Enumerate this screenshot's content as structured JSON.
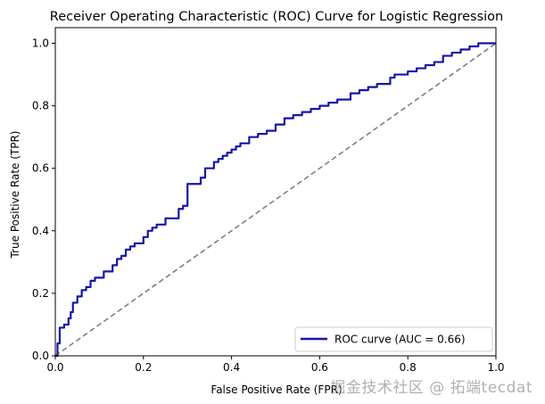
{
  "chart_data": {
    "type": "line",
    "title": "Receiver Operating Characteristic (ROC) Curve for Logistic Regression",
    "xlabel": "False Positive Rate (FPR)",
    "ylabel": "True Positive Rate (TPR)",
    "xlim": [
      0.0,
      1.0
    ],
    "ylim": [
      0.0,
      1.05
    ],
    "xticks": [
      "0.0",
      "0.2",
      "0.4",
      "0.6",
      "0.8",
      "1.0"
    ],
    "yticks": [
      "0.0",
      "0.2",
      "0.4",
      "0.6",
      "0.8",
      "1.0"
    ],
    "grid": false,
    "legend_position": "lower-right",
    "series": [
      {
        "name": "ROC curve (AUC = 0.66)",
        "color": "#1515a8",
        "style": "solid",
        "x": [
          0.0,
          0.005,
          0.005,
          0.01,
          0.01,
          0.02,
          0.02,
          0.03,
          0.03,
          0.035,
          0.035,
          0.04,
          0.04,
          0.05,
          0.05,
          0.06,
          0.06,
          0.07,
          0.07,
          0.08,
          0.08,
          0.09,
          0.09,
          0.11,
          0.11,
          0.13,
          0.13,
          0.14,
          0.14,
          0.15,
          0.15,
          0.16,
          0.16,
          0.17,
          0.17,
          0.18,
          0.18,
          0.2,
          0.2,
          0.21,
          0.21,
          0.22,
          0.22,
          0.23,
          0.23,
          0.25,
          0.25,
          0.28,
          0.28,
          0.29,
          0.29,
          0.3,
          0.3,
          0.33,
          0.33,
          0.34,
          0.34,
          0.36,
          0.36,
          0.37,
          0.37,
          0.38,
          0.38,
          0.39,
          0.39,
          0.4,
          0.4,
          0.41,
          0.41,
          0.42,
          0.42,
          0.44,
          0.44,
          0.46,
          0.46,
          0.48,
          0.48,
          0.5,
          0.5,
          0.52,
          0.52,
          0.54,
          0.54,
          0.56,
          0.56,
          0.58,
          0.58,
          0.6,
          0.6,
          0.62,
          0.62,
          0.64,
          0.64,
          0.67,
          0.67,
          0.69,
          0.69,
          0.71,
          0.71,
          0.73,
          0.73,
          0.76,
          0.76,
          0.77,
          0.77,
          0.8,
          0.8,
          0.82,
          0.82,
          0.84,
          0.84,
          0.86,
          0.86,
          0.88,
          0.88,
          0.9,
          0.9,
          0.92,
          0.92,
          0.94,
          0.94,
          0.96,
          0.96,
          1.0
        ],
        "y": [
          0.0,
          0.0,
          0.04,
          0.04,
          0.09,
          0.09,
          0.1,
          0.1,
          0.12,
          0.12,
          0.14,
          0.14,
          0.17,
          0.17,
          0.19,
          0.19,
          0.21,
          0.21,
          0.22,
          0.22,
          0.24,
          0.24,
          0.25,
          0.25,
          0.27,
          0.27,
          0.29,
          0.29,
          0.31,
          0.31,
          0.32,
          0.32,
          0.34,
          0.34,
          0.35,
          0.35,
          0.36,
          0.36,
          0.38,
          0.38,
          0.4,
          0.4,
          0.41,
          0.41,
          0.42,
          0.42,
          0.44,
          0.44,
          0.47,
          0.47,
          0.48,
          0.48,
          0.55,
          0.55,
          0.57,
          0.57,
          0.6,
          0.6,
          0.62,
          0.62,
          0.63,
          0.63,
          0.64,
          0.64,
          0.65,
          0.65,
          0.66,
          0.66,
          0.67,
          0.67,
          0.68,
          0.68,
          0.7,
          0.7,
          0.71,
          0.71,
          0.72,
          0.72,
          0.74,
          0.74,
          0.76,
          0.76,
          0.77,
          0.77,
          0.78,
          0.78,
          0.79,
          0.79,
          0.8,
          0.8,
          0.81,
          0.81,
          0.82,
          0.82,
          0.84,
          0.84,
          0.85,
          0.85,
          0.86,
          0.86,
          0.87,
          0.87,
          0.89,
          0.89,
          0.9,
          0.9,
          0.91,
          0.91,
          0.92,
          0.92,
          0.93,
          0.93,
          0.94,
          0.94,
          0.96,
          0.96,
          0.97,
          0.97,
          0.98,
          0.98,
          0.99,
          0.99,
          1.0,
          1.0
        ]
      },
      {
        "name": "",
        "color": "#808080",
        "style": "dashed",
        "x": [
          0.0,
          1.0
        ],
        "y": [
          0.0,
          1.0
        ]
      }
    ]
  },
  "watermark": "掘金技术社区 @ 拓端tecdat"
}
